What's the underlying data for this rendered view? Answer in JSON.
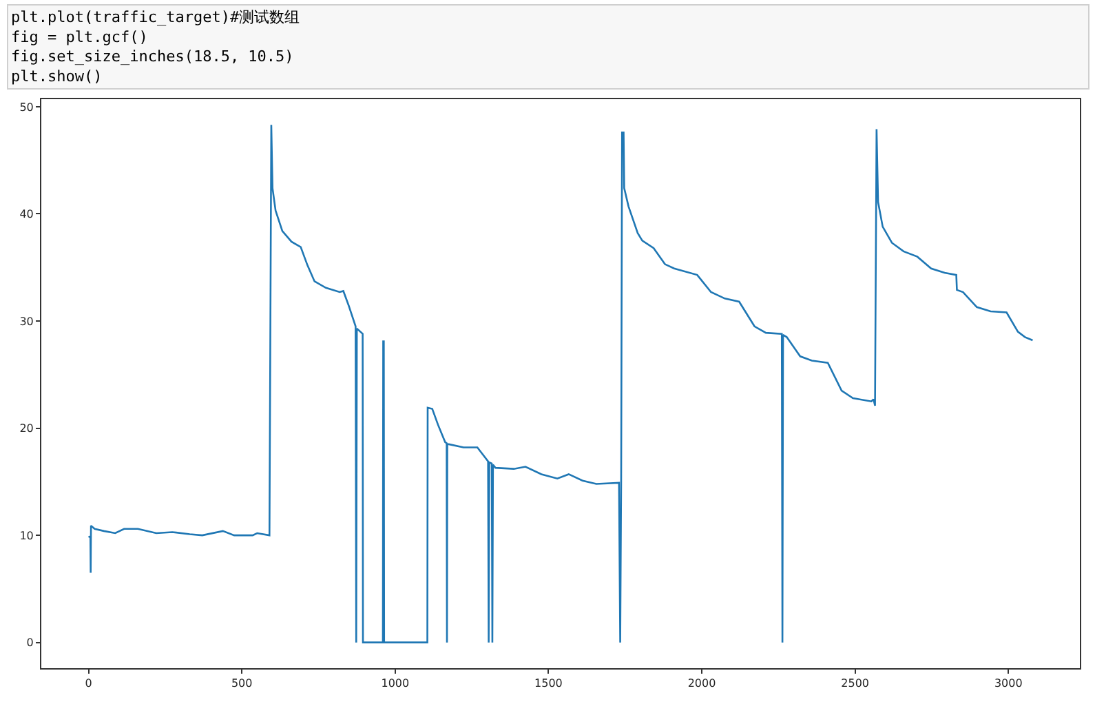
{
  "chart_data": {
    "type": "line",
    "annotations": [
      "plt.plot(traffic_target)#测试数组",
      "fig = plt.gcf()",
      "fig.set_size_inches(18.5, 10.5)",
      "plt.show()"
    ],
    "x": [
      0,
      6,
      7,
      8,
      20,
      50,
      87,
      116,
      161,
      221,
      273,
      330,
      371,
      438,
      475,
      535,
      550,
      590,
      596,
      600,
      610,
      632,
      662,
      692,
      714,
      737,
      774,
      819,
      831,
      849,
      871,
      873,
      875,
      894,
      895,
      960,
      961,
      963,
      964,
      1105,
      1106,
      1121,
      1140,
      1163,
      1168,
      1169,
      1170,
      1175,
      1223,
      1268,
      1303,
      1305,
      1307,
      1315,
      1317,
      1319,
      1327,
      1387,
      1425,
      1477,
      1529,
      1566,
      1611,
      1656,
      1730,
      1734,
      1737,
      1740,
      1745,
      1747,
      1761,
      1791,
      1806,
      1843,
      1880,
      1910,
      1985,
      2030,
      2075,
      2122,
      2172,
      2209,
      2261,
      2263,
      2265,
      2277,
      2321,
      2359,
      2411,
      2456,
      2493,
      2553,
      2560,
      2565,
      2570,
      2575,
      2590,
      2620,
      2658,
      2703,
      2748,
      2792,
      2830,
      2832,
      2852,
      2897,
      2942,
      2994,
      3031,
      3054,
      3079
    ],
    "values": [
      9.9,
      9.8,
      6.5,
      10.9,
      10.6,
      10.4,
      10.2,
      10.6,
      10.6,
      10.2,
      10.3,
      10.1,
      10.0,
      10.4,
      10.0,
      10.0,
      10.2,
      10.0,
      48.3,
      42.4,
      40.3,
      38.4,
      37.4,
      36.9,
      35.2,
      33.7,
      33.1,
      32.7,
      32.8,
      31.4,
      29.5,
      0,
      29.3,
      28.8,
      0,
      0,
      28.1,
      28.1,
      0,
      0,
      21.9,
      21.8,
      20.3,
      18.7,
      18.6,
      0,
      18.5,
      18.5,
      18.2,
      18.2,
      16.9,
      0,
      16.8,
      16.7,
      0,
      16.6,
      16.3,
      16.2,
      16.4,
      15.7,
      15.3,
      15.7,
      15.1,
      14.8,
      14.9,
      0,
      14.9,
      47.6,
      47.6,
      42.4,
      40.7,
      38.2,
      37.5,
      36.8,
      35.3,
      34.9,
      34.3,
      32.7,
      32.1,
      31.8,
      29.5,
      28.9,
      28.8,
      0,
      28.7,
      28.5,
      26.7,
      26.3,
      26.1,
      23.5,
      22.8,
      22.5,
      22.7,
      22.1,
      47.9,
      41.1,
      38.8,
      37.3,
      36.5,
      36.0,
      34.9,
      34.5,
      34.3,
      32.9,
      32.7,
      31.3,
      30.9,
      30.8,
      29.0,
      28.5,
      28.2
    ],
    "color": "#1f77b4",
    "xlim": [
      -154,
      3233
    ],
    "ylim": [
      -2.4,
      50.7
    ],
    "xticks": [
      0,
      500,
      1000,
      1500,
      2000,
      2500,
      3000
    ],
    "yticks": [
      0,
      10,
      20,
      30,
      40,
      50
    ],
    "grid": false,
    "marker": "none",
    "line_style": "solid"
  }
}
